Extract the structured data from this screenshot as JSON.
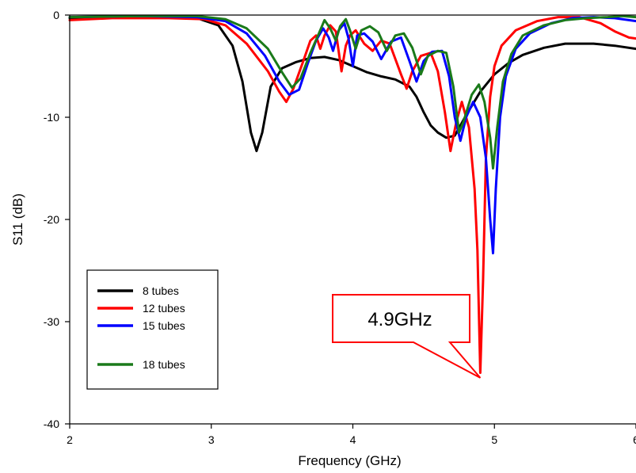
{
  "chart_data": {
    "type": "line",
    "title": "",
    "xlabel": "Frequency (GHz)",
    "ylabel": "S11 (dB)",
    "xlim": [
      2,
      6
    ],
    "ylim": [
      -40,
      0
    ],
    "xticks": [
      2,
      3,
      4,
      5,
      6
    ],
    "yticks": [
      0,
      -10,
      -20,
      -30,
      -40
    ],
    "xtick_labels": [
      "2",
      "3",
      "4",
      "5",
      "6"
    ],
    "ytick_labels": [
      "0",
      "-10",
      "-20",
      "-30",
      "-40"
    ],
    "grid": false,
    "legend_position": "bottom-left",
    "series": [
      {
        "name": "8 tubes",
        "color": "#000000",
        "points": [
          [
            2.0,
            -0.3
          ],
          [
            2.5,
            -0.2
          ],
          [
            2.9,
            -0.3
          ],
          [
            3.05,
            -1.0
          ],
          [
            3.15,
            -3.0
          ],
          [
            3.22,
            -6.5
          ],
          [
            3.28,
            -11.5
          ],
          [
            3.32,
            -13.3
          ],
          [
            3.36,
            -11.5
          ],
          [
            3.42,
            -7.0
          ],
          [
            3.5,
            -5.2
          ],
          [
            3.6,
            -4.6
          ],
          [
            3.7,
            -4.2
          ],
          [
            3.8,
            -4.1
          ],
          [
            3.9,
            -4.4
          ],
          [
            4.0,
            -5.0
          ],
          [
            4.1,
            -5.6
          ],
          [
            4.2,
            -6.0
          ],
          [
            4.3,
            -6.3
          ],
          [
            4.4,
            -7.0
          ],
          [
            4.45,
            -8.0
          ],
          [
            4.5,
            -9.5
          ],
          [
            4.55,
            -10.8
          ],
          [
            4.6,
            -11.5
          ],
          [
            4.66,
            -12.0
          ],
          [
            4.72,
            -11.8
          ],
          [
            4.8,
            -9.8
          ],
          [
            4.9,
            -7.5
          ],
          [
            5.0,
            -5.8
          ],
          [
            5.1,
            -4.7
          ],
          [
            5.2,
            -3.9
          ],
          [
            5.35,
            -3.2
          ],
          [
            5.5,
            -2.8
          ],
          [
            5.7,
            -2.8
          ],
          [
            5.85,
            -3.0
          ],
          [
            6.0,
            -3.3
          ]
        ]
      },
      {
        "name": "12 tubes",
        "color": "#ff0000",
        "points": [
          [
            2.0,
            -0.5
          ],
          [
            2.3,
            -0.3
          ],
          [
            2.7,
            -0.3
          ],
          [
            2.95,
            -0.4
          ],
          [
            3.1,
            -1.0
          ],
          [
            3.25,
            -2.8
          ],
          [
            3.4,
            -5.5
          ],
          [
            3.48,
            -7.5
          ],
          [
            3.53,
            -8.5
          ],
          [
            3.58,
            -7.2
          ],
          [
            3.65,
            -4.5
          ],
          [
            3.7,
            -2.5
          ],
          [
            3.74,
            -2.0
          ],
          [
            3.77,
            -3.3
          ],
          [
            3.8,
            -2.0
          ],
          [
            3.84,
            -1.0
          ],
          [
            3.88,
            -1.6
          ],
          [
            3.92,
            -5.5
          ],
          [
            3.95,
            -3.0
          ],
          [
            3.98,
            -2.0
          ],
          [
            4.02,
            -1.5
          ],
          [
            4.08,
            -2.8
          ],
          [
            4.14,
            -3.5
          ],
          [
            4.2,
            -2.5
          ],
          [
            4.26,
            -2.8
          ],
          [
            4.34,
            -5.8
          ],
          [
            4.38,
            -7.2
          ],
          [
            4.42,
            -5.5
          ],
          [
            4.48,
            -4.0
          ],
          [
            4.55,
            -3.7
          ],
          [
            4.6,
            -5.5
          ],
          [
            4.65,
            -9.5
          ],
          [
            4.69,
            -13.3
          ],
          [
            4.73,
            -10.5
          ],
          [
            4.77,
            -8.5
          ],
          [
            4.82,
            -11.0
          ],
          [
            4.86,
            -17.0
          ],
          [
            4.88,
            -23.0
          ],
          [
            4.9,
            -35.0
          ],
          [
            4.92,
            -26.0
          ],
          [
            4.94,
            -14.0
          ],
          [
            4.97,
            -8.0
          ],
          [
            5.0,
            -5.0
          ],
          [
            5.05,
            -3.0
          ],
          [
            5.15,
            -1.5
          ],
          [
            5.3,
            -0.6
          ],
          [
            5.45,
            -0.2
          ],
          [
            5.6,
            -0.2
          ],
          [
            5.75,
            -0.8
          ],
          [
            5.85,
            -1.6
          ],
          [
            5.95,
            -2.2
          ],
          [
            6.0,
            -2.3
          ]
        ]
      },
      {
        "name": "15 tubes",
        "color": "#0000ff",
        "points": [
          [
            2.0,
            -0.2
          ],
          [
            2.5,
            -0.1
          ],
          [
            2.9,
            -0.2
          ],
          [
            3.1,
            -0.6
          ],
          [
            3.25,
            -1.8
          ],
          [
            3.38,
            -4.0
          ],
          [
            3.48,
            -6.5
          ],
          [
            3.55,
            -7.8
          ],
          [
            3.62,
            -7.3
          ],
          [
            3.68,
            -4.8
          ],
          [
            3.74,
            -2.5
          ],
          [
            3.79,
            -1.3
          ],
          [
            3.83,
            -2.2
          ],
          [
            3.86,
            -3.5
          ],
          [
            3.9,
            -1.5
          ],
          [
            3.94,
            -0.8
          ],
          [
            3.97,
            -2.3
          ],
          [
            4.0,
            -5.0
          ],
          [
            4.03,
            -2.0
          ],
          [
            4.08,
            -1.8
          ],
          [
            4.14,
            -2.6
          ],
          [
            4.2,
            -4.3
          ],
          [
            4.27,
            -2.6
          ],
          [
            4.34,
            -2.2
          ],
          [
            4.4,
            -4.5
          ],
          [
            4.45,
            -6.5
          ],
          [
            4.5,
            -4.5
          ],
          [
            4.56,
            -3.6
          ],
          [
            4.63,
            -3.5
          ],
          [
            4.68,
            -6.0
          ],
          [
            4.72,
            -10.0
          ],
          [
            4.76,
            -12.3
          ],
          [
            4.8,
            -10.0
          ],
          [
            4.85,
            -8.5
          ],
          [
            4.9,
            -10.0
          ],
          [
            4.94,
            -14.0
          ],
          [
            4.97,
            -20.0
          ],
          [
            4.99,
            -23.3
          ],
          [
            5.01,
            -17.0
          ],
          [
            5.04,
            -10.0
          ],
          [
            5.08,
            -6.0
          ],
          [
            5.15,
            -3.3
          ],
          [
            5.25,
            -1.8
          ],
          [
            5.4,
            -0.8
          ],
          [
            5.55,
            -0.3
          ],
          [
            5.7,
            -0.2
          ],
          [
            5.85,
            -0.3
          ],
          [
            6.0,
            -0.6
          ]
        ]
      },
      {
        "name": "18 tubes",
        "color": "#1a7a1a",
        "points": [
          [
            2.0,
            -0.2
          ],
          [
            2.5,
            -0.1
          ],
          [
            2.9,
            -0.1
          ],
          [
            3.1,
            -0.4
          ],
          [
            3.25,
            -1.3
          ],
          [
            3.4,
            -3.3
          ],
          [
            3.5,
            -5.6
          ],
          [
            3.57,
            -7.1
          ],
          [
            3.63,
            -6.2
          ],
          [
            3.7,
            -3.7
          ],
          [
            3.76,
            -1.8
          ],
          [
            3.8,
            -0.5
          ],
          [
            3.84,
            -1.3
          ],
          [
            3.88,
            -2.5
          ],
          [
            3.91,
            -1.1
          ],
          [
            3.95,
            -0.4
          ],
          [
            3.98,
            -1.5
          ],
          [
            4.02,
            -3.3
          ],
          [
            4.06,
            -1.5
          ],
          [
            4.12,
            -1.1
          ],
          [
            4.18,
            -1.7
          ],
          [
            4.24,
            -3.5
          ],
          [
            4.3,
            -2.0
          ],
          [
            4.36,
            -1.8
          ],
          [
            4.42,
            -3.2
          ],
          [
            4.48,
            -5.8
          ],
          [
            4.53,
            -4.0
          ],
          [
            4.6,
            -3.5
          ],
          [
            4.66,
            -3.7
          ],
          [
            4.71,
            -7.0
          ],
          [
            4.75,
            -11.5
          ],
          [
            4.78,
            -10.5
          ],
          [
            4.84,
            -7.8
          ],
          [
            4.89,
            -6.8
          ],
          [
            4.93,
            -8.5
          ],
          [
            4.97,
            -12.0
          ],
          [
            4.99,
            -15.0
          ],
          [
            5.02,
            -11.0
          ],
          [
            5.06,
            -6.5
          ],
          [
            5.12,
            -3.8
          ],
          [
            5.2,
            -2.0
          ],
          [
            5.35,
            -1.0
          ],
          [
            5.5,
            -0.5
          ],
          [
            5.65,
            -0.3
          ],
          [
            5.8,
            -0.2
          ],
          [
            5.9,
            -0.1
          ],
          [
            6.0,
            -0.2
          ]
        ]
      }
    ],
    "legend": [
      "8 tubes",
      "12 tubes",
      "15 tubes",
      "18 tubes"
    ],
    "annotations": [
      {
        "text": "4.9GHz",
        "points_to": {
          "x": 4.9,
          "y": -35.5
        },
        "border_color": "#ff0000"
      }
    ]
  }
}
